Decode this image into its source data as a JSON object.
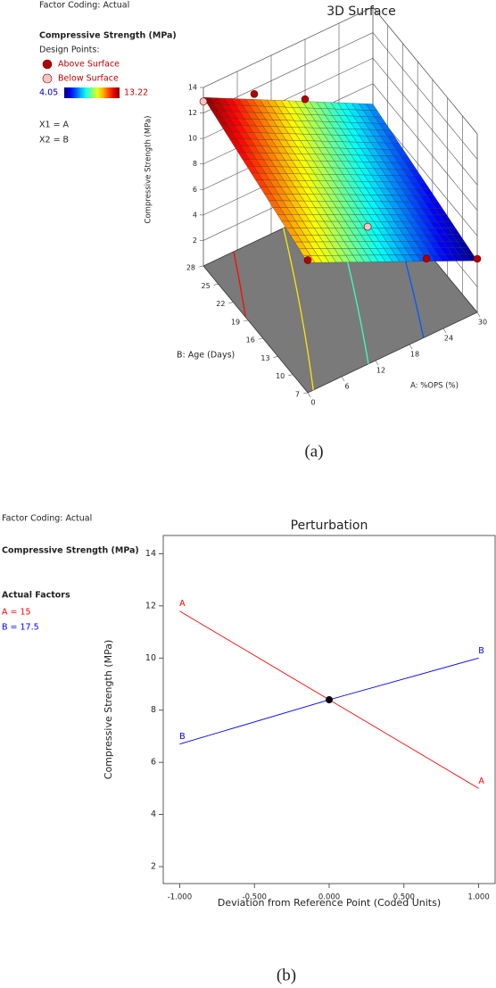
{
  "chart_data": [
    {
      "type": "surface",
      "title": "3D Surface",
      "legend_header": "Factor Coding: Actual",
      "response": "Compressive Strength (MPa)",
      "design_points_label": "Design Points:",
      "color_range": [
        4.05,
        13.22
      ],
      "factor_labels": [
        "X1 = A",
        "X2 = B"
      ],
      "xlabel": "A: %OPS (%)",
      "ylabel": "B: Age (Days)",
      "zlabel": "Compressive Strength (MPa)",
      "xlim": [
        0,
        30
      ],
      "ylim": [
        7,
        28
      ],
      "zlim": [
        0,
        14
      ],
      "xticks": [
        0,
        6,
        12,
        18,
        24,
        30
      ],
      "yticks": [
        7,
        10,
        13,
        16,
        19,
        22,
        25,
        28
      ],
      "zticks": [
        2,
        4,
        6,
        8,
        10,
        12,
        14
      ],
      "x": [
        0,
        30
      ],
      "y": [
        7,
        28
      ],
      "z": [
        [
          10.2,
          4.05
        ],
        [
          13.22,
          6.4
        ]
      ],
      "series": [
        {
          "name": "Above Surface",
          "color": "#b00000",
          "x": [
            9,
            18,
            0,
            21,
            30
          ],
          "y": [
            28,
            28,
            7,
            7,
            7
          ],
          "z": [
            11.6,
            9.3,
            10.4,
            6.1,
            4.2
          ]
        },
        {
          "name": "Below Surface",
          "color": "#f6c4c4",
          "x": [
            0,
            15
          ],
          "y": [
            28,
            12
          ],
          "z": [
            12.9,
            7.5
          ]
        }
      ],
      "floor_color": "#7a7a7a",
      "caption": "(a)"
    },
    {
      "type": "perturbation",
      "title": "Perturbation",
      "legend_header": "Factor Coding: Actual",
      "response": "Compressive Strength (MPa)",
      "factors_title": "Actual Factors",
      "factors": [
        "A = 15",
        "B = 17.5"
      ],
      "xlabel": "Deviation from Reference Point (Coded Units)",
      "ylabel": "Compressive Strength (MPa)",
      "xlim": [
        -1.11,
        1.11
      ],
      "ylim": [
        1.35,
        14.7
      ],
      "xticks": [
        {
          "value": -1,
          "label": "-1.000"
        },
        {
          "value": -0.5,
          "label": "-0.500"
        },
        {
          "value": 0,
          "label": "0.000"
        },
        {
          "value": 0.5,
          "label": "0.500"
        },
        {
          "value": 1,
          "label": "1.000"
        }
      ],
      "yticks": [
        2,
        4,
        6,
        8,
        10,
        12,
        14
      ],
      "series": [
        {
          "name": "A",
          "color": "#ff0000",
          "x": [
            -1,
            0,
            1
          ],
          "values": [
            11.8,
            8.4,
            5.0
          ]
        },
        {
          "name": "B",
          "color": "#0000ff",
          "x": [
            -1,
            0,
            1
          ],
          "values": [
            6.7,
            8.4,
            10.0
          ]
        }
      ],
      "reference_point": {
        "x": 0,
        "value": 8.4
      },
      "caption": "(b)"
    }
  ]
}
